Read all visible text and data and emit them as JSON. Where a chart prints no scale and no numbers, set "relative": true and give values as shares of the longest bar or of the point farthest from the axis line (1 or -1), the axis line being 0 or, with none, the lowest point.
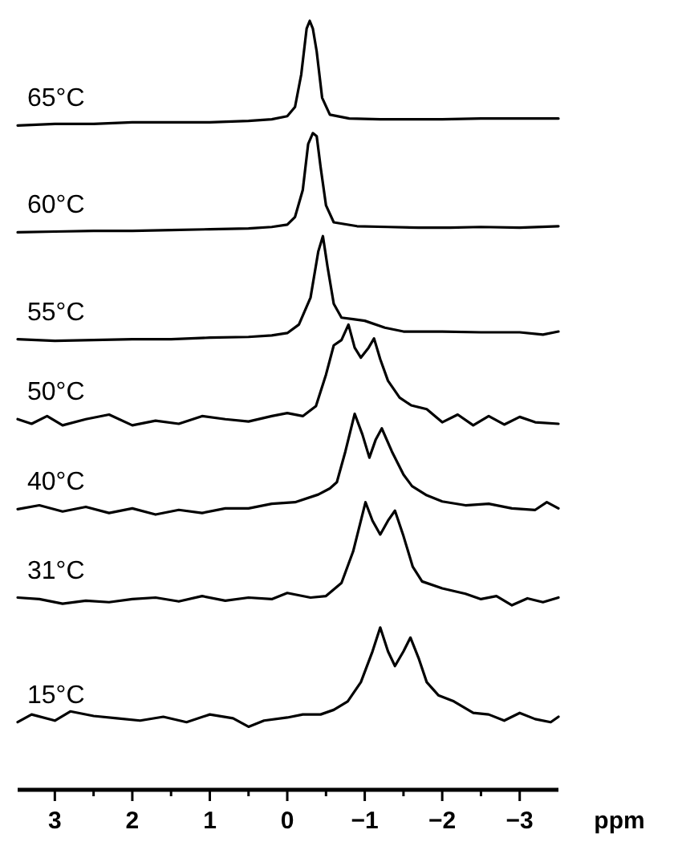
{
  "chart_data": {
    "type": "line",
    "relative": true,
    "xlabel": "ppm",
    "xlim": [
      3.48,
      -3.5
    ],
    "xticks": [
      3,
      {
        "value": 2.5,
        "label": null
      },
      2,
      {
        "value": 1.5,
        "label": null
      },
      1,
      {
        "value": 0.5,
        "label": null
      },
      0,
      {
        "value": -0.5,
        "label": null
      },
      -1,
      {
        "value": -1.5,
        "label": null
      },
      -2,
      {
        "value": -2.5,
        "label": null
      },
      -3
    ],
    "series": [
      {
        "name": "65°C",
        "color": "#000000",
        "x": [
          3.48,
          3.0,
          2.5,
          2.0,
          1.5,
          1.0,
          0.5,
          0.2,
          0.0,
          -0.1,
          -0.18,
          -0.25,
          -0.29,
          -0.33,
          -0.38,
          -0.45,
          -0.55,
          -0.8,
          -1.2,
          -1.6,
          -2.0,
          -2.5,
          -3.0,
          -3.5
        ],
        "values": [
          0.864,
          0.866,
          0.866,
          0.868,
          0.868,
          0.868,
          0.87,
          0.872,
          0.876,
          0.888,
          0.93,
          0.99,
          1.0,
          0.99,
          0.96,
          0.9,
          0.878,
          0.873,
          0.872,
          0.872,
          0.872,
          0.873,
          0.873,
          0.873
        ]
      },
      {
        "name": "60°C",
        "color": "#000000",
        "x": [
          3.48,
          3.0,
          2.5,
          2.0,
          1.5,
          1.0,
          0.5,
          0.2,
          0.0,
          -0.1,
          -0.2,
          -0.27,
          -0.33,
          -0.38,
          -0.43,
          -0.5,
          -0.6,
          -0.9,
          -1.3,
          -1.7,
          -2.1,
          -2.5,
          -3.0,
          -3.5
        ],
        "values": [
          0.725,
          0.726,
          0.727,
          0.727,
          0.728,
          0.729,
          0.73,
          0.732,
          0.735,
          0.745,
          0.78,
          0.84,
          0.854,
          0.85,
          0.81,
          0.76,
          0.738,
          0.733,
          0.732,
          0.731,
          0.731,
          0.732,
          0.731,
          0.733
        ]
      },
      {
        "name": "55°C",
        "color": "#000000",
        "x": [
          3.48,
          3.0,
          2.5,
          2.0,
          1.5,
          1.0,
          0.5,
          0.2,
          0.0,
          -0.15,
          -0.3,
          -0.4,
          -0.46,
          -0.52,
          -0.6,
          -0.7,
          -0.85,
          -1.0,
          -1.26,
          -1.5,
          -2.0,
          -2.5,
          -3.0,
          -3.3,
          -3.5
        ],
        "values": [
          0.586,
          0.584,
          0.585,
          0.586,
          0.586,
          0.588,
          0.589,
          0.591,
          0.594,
          0.605,
          0.64,
          0.7,
          0.72,
          0.68,
          0.632,
          0.614,
          0.612,
          0.61,
          0.601,
          0.596,
          0.596,
          0.595,
          0.595,
          0.592,
          0.596
        ]
      },
      {
        "name": "50°C",
        "color": "#000000",
        "x": [
          3.48,
          3.3,
          3.1,
          2.9,
          2.6,
          2.3,
          2.0,
          1.7,
          1.4,
          1.1,
          0.8,
          0.5,
          0.2,
          0.0,
          -0.2,
          -0.37,
          -0.5,
          -0.6,
          -0.7,
          -0.79,
          -0.87,
          -0.95,
          -1.05,
          -1.12,
          -1.2,
          -1.3,
          -1.45,
          -1.6,
          -1.8,
          -2.0,
          -2.2,
          -2.4,
          -2.6,
          -2.8,
          -3.0,
          -3.2,
          -3.5
        ],
        "values": [
          0.482,
          0.476,
          0.486,
          0.474,
          0.482,
          0.488,
          0.474,
          0.48,
          0.476,
          0.486,
          0.482,
          0.479,
          0.486,
          0.49,
          0.486,
          0.499,
          0.54,
          0.578,
          0.585,
          0.605,
          0.575,
          0.562,
          0.575,
          0.587,
          0.56,
          0.532,
          0.51,
          0.5,
          0.495,
          0.478,
          0.488,
          0.474,
          0.486,
          0.475,
          0.485,
          0.478,
          0.476
        ]
      },
      {
        "name": "40°C",
        "color": "#000000",
        "x": [
          3.48,
          3.2,
          2.9,
          2.6,
          2.3,
          2.0,
          1.7,
          1.4,
          1.1,
          0.8,
          0.5,
          0.2,
          -0.1,
          -0.4,
          -0.55,
          -0.64,
          -0.75,
          -0.87,
          -0.97,
          -1.06,
          -1.14,
          -1.22,
          -1.35,
          -1.5,
          -1.61,
          -1.8,
          -2.0,
          -2.3,
          -2.6,
          -2.9,
          -3.2,
          -3.35,
          -3.5
        ],
        "values": [
          0.365,
          0.37,
          0.362,
          0.368,
          0.36,
          0.366,
          0.358,
          0.364,
          0.36,
          0.366,
          0.366,
          0.372,
          0.374,
          0.384,
          0.392,
          0.4,
          0.44,
          0.489,
          0.462,
          0.432,
          0.455,
          0.47,
          0.44,
          0.41,
          0.395,
          0.383,
          0.375,
          0.37,
          0.372,
          0.366,
          0.364,
          0.374,
          0.366
        ]
      },
      {
        "name": "31°C",
        "color": "#000000",
        "x": [
          3.48,
          3.2,
          2.9,
          2.6,
          2.3,
          2.0,
          1.7,
          1.4,
          1.1,
          0.8,
          0.5,
          0.2,
          0.0,
          -0.3,
          -0.5,
          -0.7,
          -0.85,
          -1.01,
          -1.1,
          -1.2,
          -1.3,
          -1.39,
          -1.5,
          -1.62,
          -1.74,
          -2.0,
          -2.3,
          -2.5,
          -2.7,
          -2.9,
          -3.1,
          -3.3,
          -3.5
        ],
        "values": [
          0.25,
          0.248,
          0.242,
          0.246,
          0.244,
          0.248,
          0.25,
          0.245,
          0.252,
          0.246,
          0.25,
          0.248,
          0.256,
          0.25,
          0.252,
          0.269,
          0.31,
          0.374,
          0.35,
          0.332,
          0.35,
          0.363,
          0.33,
          0.29,
          0.271,
          0.262,
          0.255,
          0.248,
          0.252,
          0.24,
          0.249,
          0.244,
          0.25
        ]
      },
      {
        "name": "15°C",
        "color": "#000000",
        "x": [
          3.48,
          3.3,
          3.0,
          2.8,
          2.5,
          2.2,
          1.9,
          1.6,
          1.3,
          1.0,
          0.7,
          0.5,
          0.3,
          0.0,
          -0.2,
          -0.43,
          -0.6,
          -0.78,
          -0.95,
          -1.1,
          -1.2,
          -1.3,
          -1.39,
          -1.5,
          -1.59,
          -1.7,
          -1.8,
          -1.95,
          -2.15,
          -2.4,
          -2.6,
          -2.8,
          -3.0,
          -3.2,
          -3.4,
          -3.5
        ],
        "values": [
          0.088,
          0.098,
          0.09,
          0.102,
          0.096,
          0.093,
          0.09,
          0.095,
          0.088,
          0.098,
          0.093,
          0.082,
          0.09,
          0.094,
          0.098,
          0.098,
          0.104,
          0.115,
          0.14,
          0.18,
          0.211,
          0.18,
          0.161,
          0.18,
          0.198,
          0.17,
          0.14,
          0.123,
          0.115,
          0.1,
          0.098,
          0.09,
          0.1,
          0.092,
          0.088,
          0.095
        ]
      }
    ]
  }
}
